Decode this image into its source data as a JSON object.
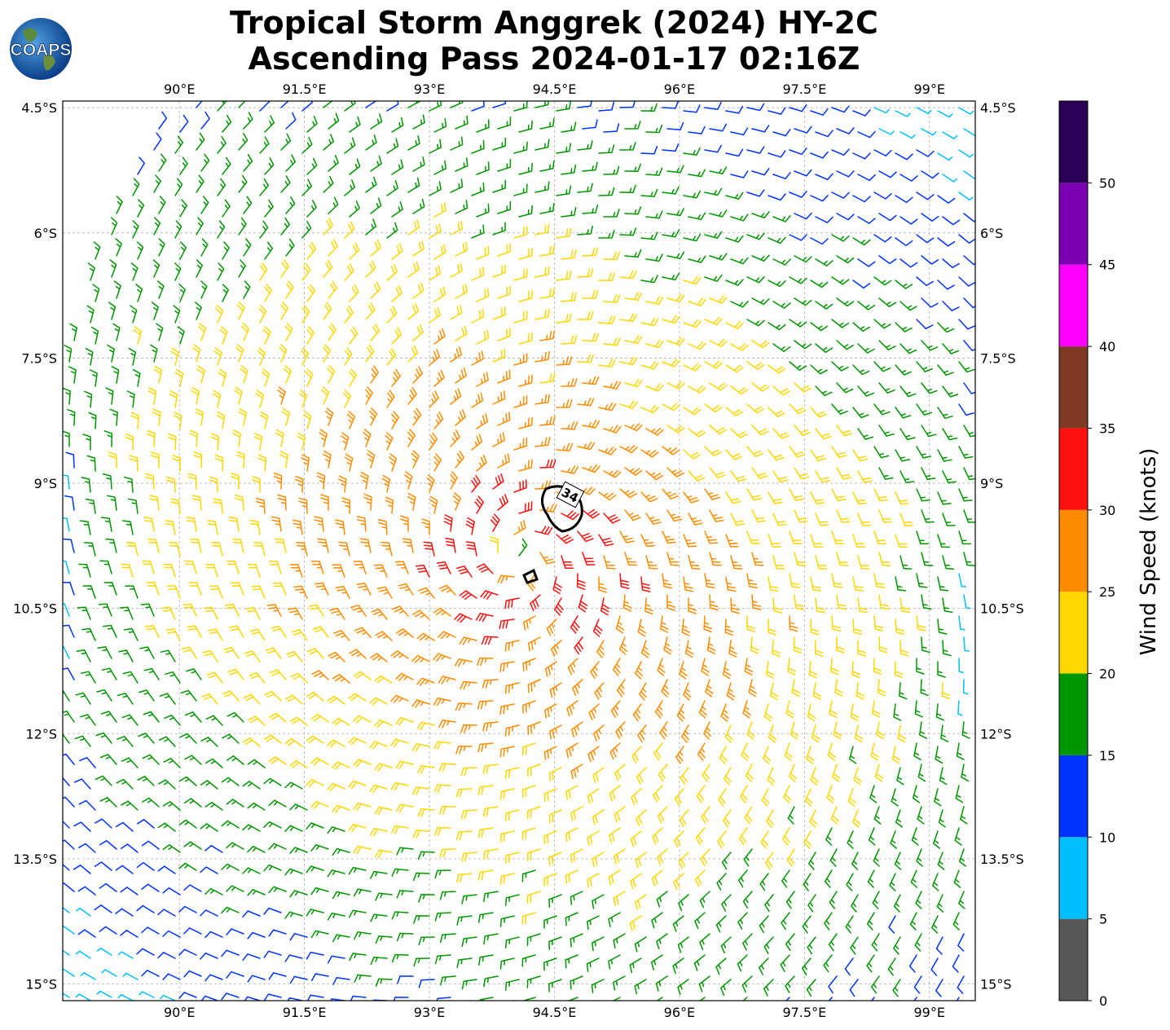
{
  "header": {
    "title_line1": "Tropical Storm Anggrek (2024) HY-2C",
    "title_line2": "Ascending Pass 2024-01-17 02:16Z",
    "logo_text": "COAPS"
  },
  "map": {
    "lon_ticks": [
      "90°E",
      "91.5°E",
      "93°E",
      "94.5°E",
      "96°E",
      "97.5°E",
      "99°E"
    ],
    "lat_ticks": [
      "4.5°S",
      "6°S",
      "7.5°S",
      "9°S",
      "10.5°S",
      "12°S",
      "13.5°S",
      "15°S"
    ],
    "lon_values": [
      90,
      91.5,
      93,
      94.5,
      96,
      97.5,
      99
    ],
    "lat_values": [
      -4.5,
      -6,
      -7.5,
      -9,
      -10.5,
      -12,
      -13.5,
      -15
    ],
    "lon_range": [
      88.6,
      99.55
    ],
    "lat_range": [
      -4.42,
      -15.2
    ],
    "storm_center": {
      "lon": 94.1,
      "lat": -9.9
    },
    "contour_label": "34",
    "grid": "dashed"
  },
  "colorbar": {
    "label": "Wind Speed (knots)",
    "tick_labels": [
      "0",
      "5",
      "10",
      "15",
      "20",
      "25",
      "30",
      "35",
      "40",
      "45",
      "50"
    ],
    "bins": [
      {
        "from": 0,
        "to": 5,
        "color": "#585858"
      },
      {
        "from": 5,
        "to": 10,
        "color": "#00bfff"
      },
      {
        "from": 10,
        "to": 15,
        "color": "#0033ff"
      },
      {
        "from": 15,
        "to": 20,
        "color": "#009600"
      },
      {
        "from": 20,
        "to": 25,
        "color": "#ffd700"
      },
      {
        "from": 25,
        "to": 30,
        "color": "#ff8c00"
      },
      {
        "from": 30,
        "to": 35,
        "color": "#ff1010"
      },
      {
        "from": 35,
        "to": 40,
        "color": "#7f3a26"
      },
      {
        "from": 40,
        "to": 45,
        "color": "#ff00ff"
      },
      {
        "from": 45,
        "to": 50,
        "color": "#7b00b3"
      },
      {
        "from": 50,
        "to": 55,
        "color": "#2a0057"
      }
    ]
  }
}
